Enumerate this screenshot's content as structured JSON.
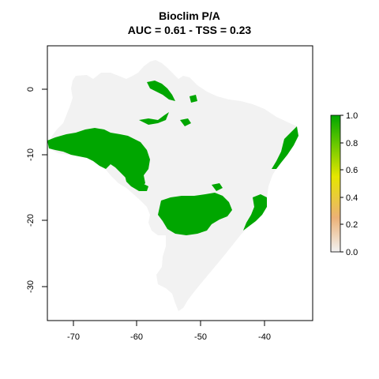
{
  "title": "Bioclim P/A",
  "subtitle": "AUC = 0.61 - TSS = 0.23",
  "map": {
    "x_ticks": [
      "-70",
      "-60",
      "-50",
      "-40"
    ],
    "y_ticks": [
      "0",
      "-10",
      "-20",
      "-30"
    ],
    "x_range": [
      -74,
      -34
    ],
    "y_range": [
      -35,
      6.5
    ],
    "background_color": "#f2f2f2",
    "presence_color": "#00a600"
  },
  "legend": {
    "ticks": [
      "1.0",
      "0.8",
      "0.6",
      "0.4",
      "0.2",
      "0.0"
    ],
    "colors": [
      "#f2f2f2",
      "#ecb176",
      "#e6e600",
      "#63c600",
      "#00a600"
    ]
  }
}
